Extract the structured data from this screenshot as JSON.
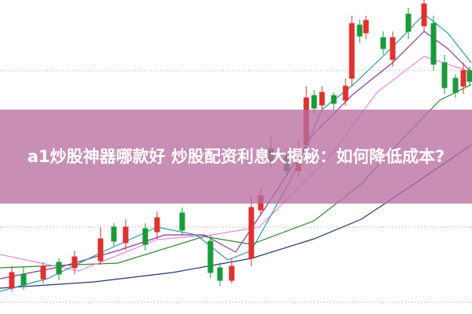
{
  "header": {
    "title": "a1炒股神器哪款好 炒股配资利息大揭秘：如何降低成本?"
  }
}
